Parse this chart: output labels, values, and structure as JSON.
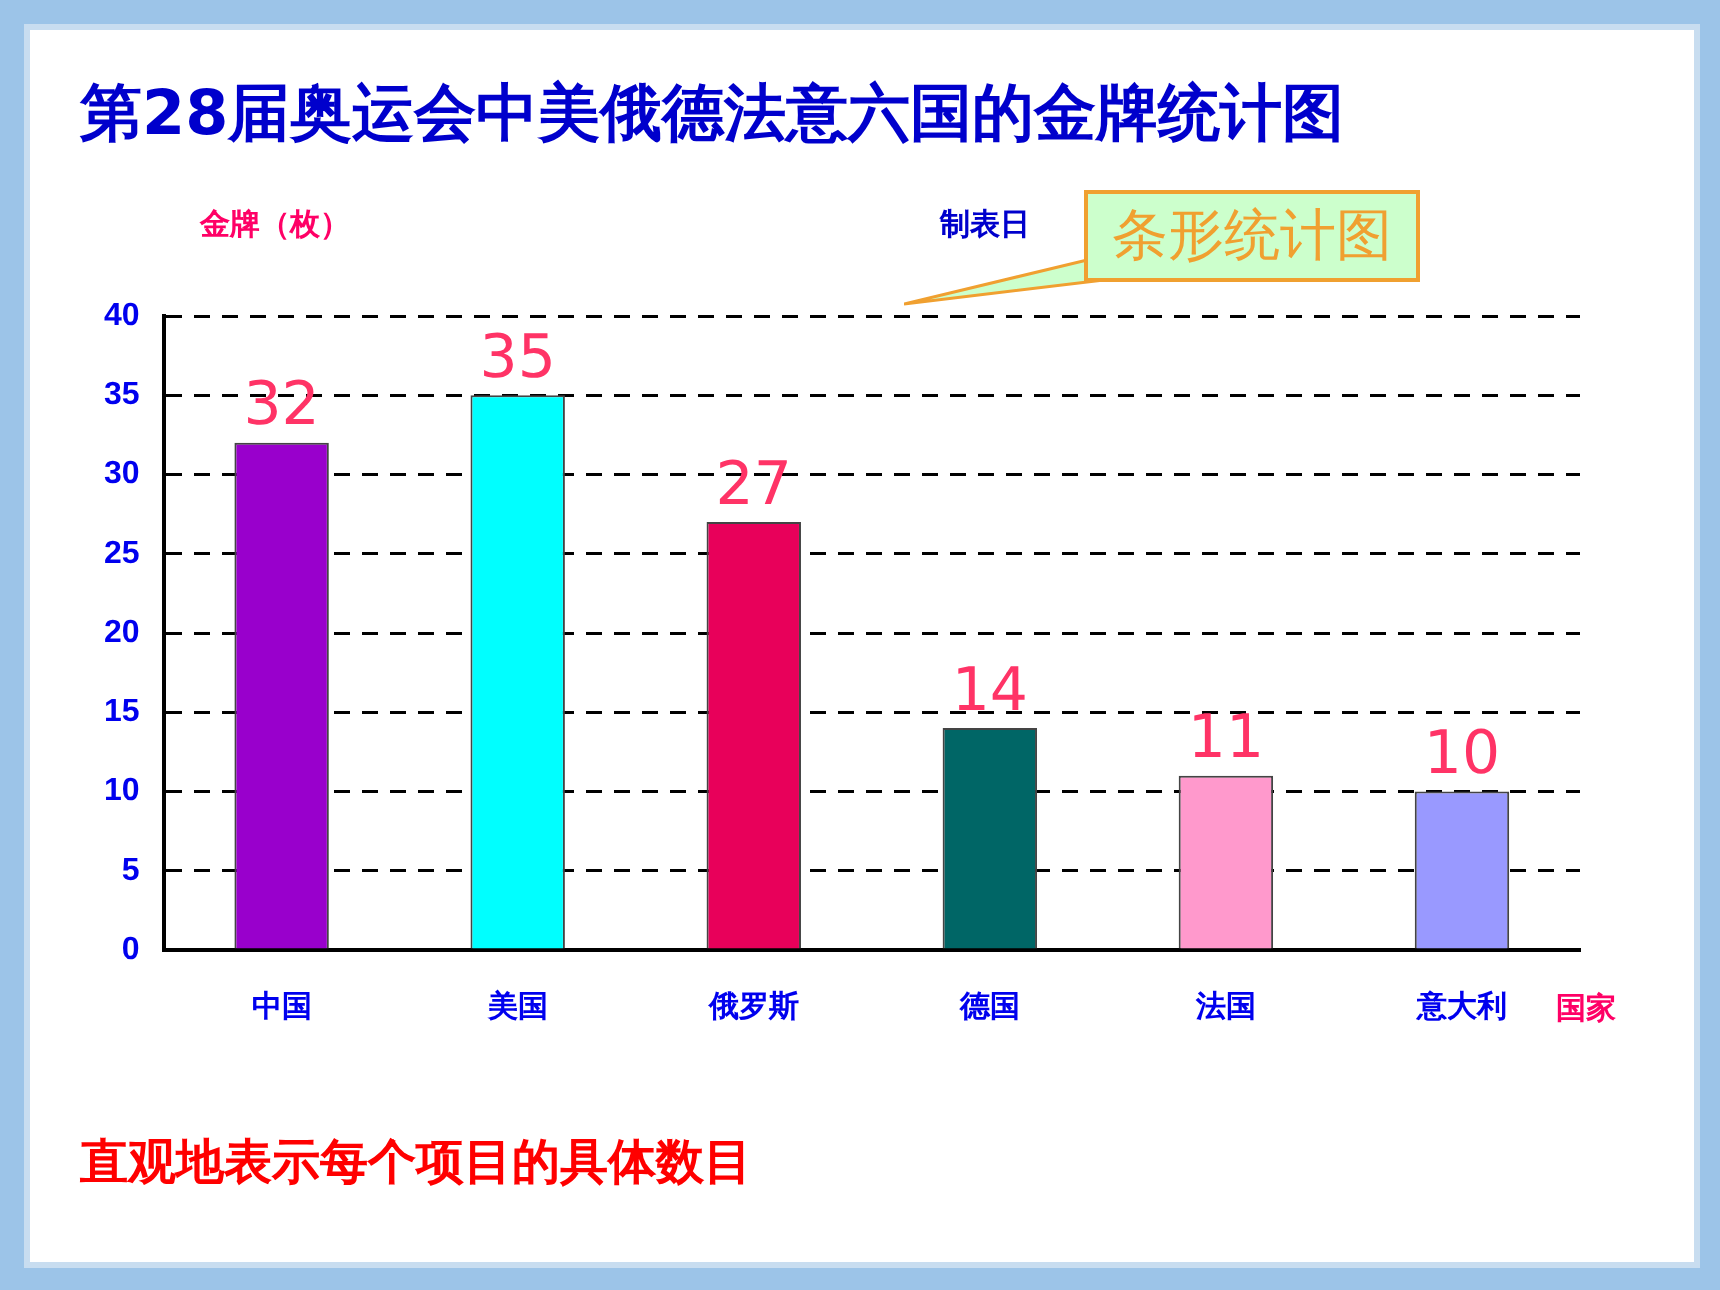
{
  "chart_data": {
    "type": "bar",
    "title": "第28届奥运会中美俄德法意六国的金牌统计图",
    "ylabel": "金牌（枚）",
    "xlabel": "国家",
    "annotations": [
      "制表日",
      "条形统计图",
      "直观地表示每个项目的具体数目"
    ],
    "categories": [
      "中国",
      "美国",
      "俄罗斯",
      "德国",
      "法国",
      "意大利"
    ],
    "values": [
      32,
      35,
      27,
      14,
      11,
      10
    ],
    "colors": [
      "#9900cc",
      "#00ffff",
      "#e8005a",
      "#006666",
      "#ff99cc",
      "#9999ff"
    ],
    "ylim": [
      0,
      40
    ],
    "yticks": [
      0,
      5,
      10,
      15,
      20,
      25,
      30,
      35,
      40
    ],
    "grid": "y",
    "data_labels": true,
    "legend": false
  }
}
